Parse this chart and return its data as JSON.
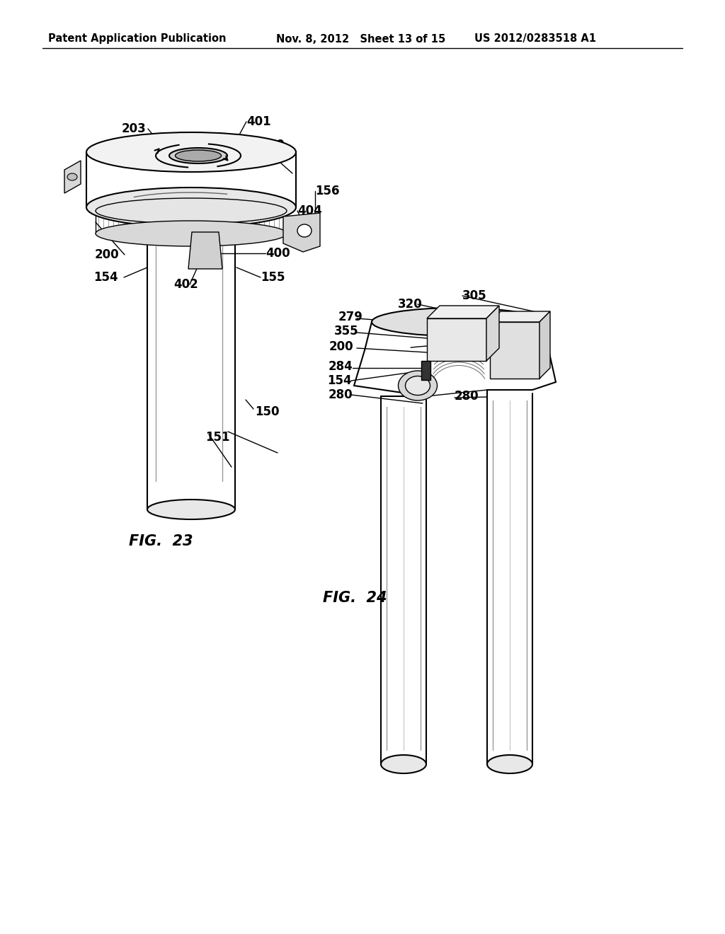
{
  "background_color": "#ffffff",
  "header_left": "Patent Application Publication",
  "header_center": "Nov. 8, 2012   Sheet 13 of 15",
  "header_right": "US 2012/0283518 A1",
  "fig23_label": "FIG.  23",
  "fig24_label": "FIG.  24",
  "header_fontsize": 10.5,
  "label_fontsize": 15,
  "ref_fontsize": 12
}
